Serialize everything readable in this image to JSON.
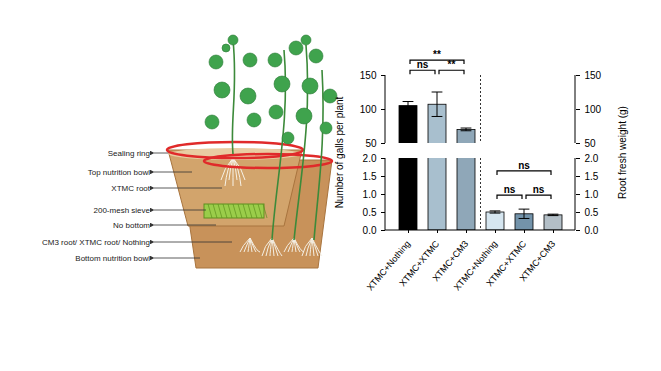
{
  "diagram": {
    "labels": [
      "Sealing ring",
      "Top nutrition bowl",
      "XTMC root",
      "200-mesh sieve",
      "No bottom",
      "CM3 root/ XTMC root/ Nothing",
      "Bottom nutrition bowl"
    ]
  },
  "chart_data": {
    "type": "bar",
    "categories": [
      "XTMC+Nothing",
      "XTMC+XTMC",
      "XTMC+CM3",
      "XTMC+Nothing",
      "XTMC+XTMC",
      "XTMC+CM3"
    ],
    "colors": [
      "#000000",
      "#a8bfce",
      "#8fa7b8",
      "#d6e6f0",
      "#7393aa",
      "#b3bfc7"
    ],
    "series": [
      {
        "axis": "y",
        "values": [
          105,
          107,
          70,
          null,
          null,
          null
        ],
        "errors": [
          6,
          18,
          2,
          null,
          null,
          null
        ]
      },
      {
        "axis": "y2",
        "values": [
          null,
          null,
          null,
          0.5,
          0.45,
          0.42
        ],
        "errors": [
          null,
          null,
          null,
          0.03,
          0.13,
          0.02
        ]
      }
    ],
    "y_label": "Number of galls per plant",
    "y2_label": "Root fresh weight (g)",
    "ylim": [
      0,
      150
    ],
    "y_break": [
      2,
      50
    ],
    "yticks": [
      {
        "value": 0,
        "label": "0.0"
      },
      {
        "value": 0.5,
        "label": "0.5"
      },
      {
        "value": 1,
        "label": "1.0"
      },
      {
        "value": 1.5,
        "label": "1.5"
      },
      {
        "value": 2,
        "label": "2.0"
      },
      50,
      100,
      150
    ],
    "y2lim": [
      0,
      150
    ],
    "y2_break": [
      2,
      50
    ],
    "y2ticks": [
      {
        "value": 0,
        "label": "0.0"
      },
      {
        "value": 0.5,
        "label": "0.5"
      },
      {
        "value": 1,
        "label": "1.0"
      },
      {
        "value": 1.5,
        "label": "1.5"
      },
      {
        "value": 2,
        "label": "2.0"
      },
      50,
      100,
      150
    ],
    "annotations": [
      {
        "from": 0,
        "to": 2,
        "y": 172,
        "label": "**",
        "axis": "y"
      },
      {
        "from": 0,
        "to": 1,
        "y": 157,
        "label": "ns",
        "axis": "y"
      },
      {
        "from": 1,
        "to": 2,
        "y": 157,
        "label": "**",
        "axis": "y"
      },
      {
        "from": 3,
        "to": 5,
        "y": 1.64,
        "label": "ns",
        "axis": "y2"
      },
      {
        "from": 3,
        "to": 4,
        "y": 0.97,
        "label": "ns",
        "axis": "y2"
      },
      {
        "from": 4,
        "to": 5,
        "y": 0.97,
        "label": "ns",
        "axis": "y2"
      }
    ]
  }
}
